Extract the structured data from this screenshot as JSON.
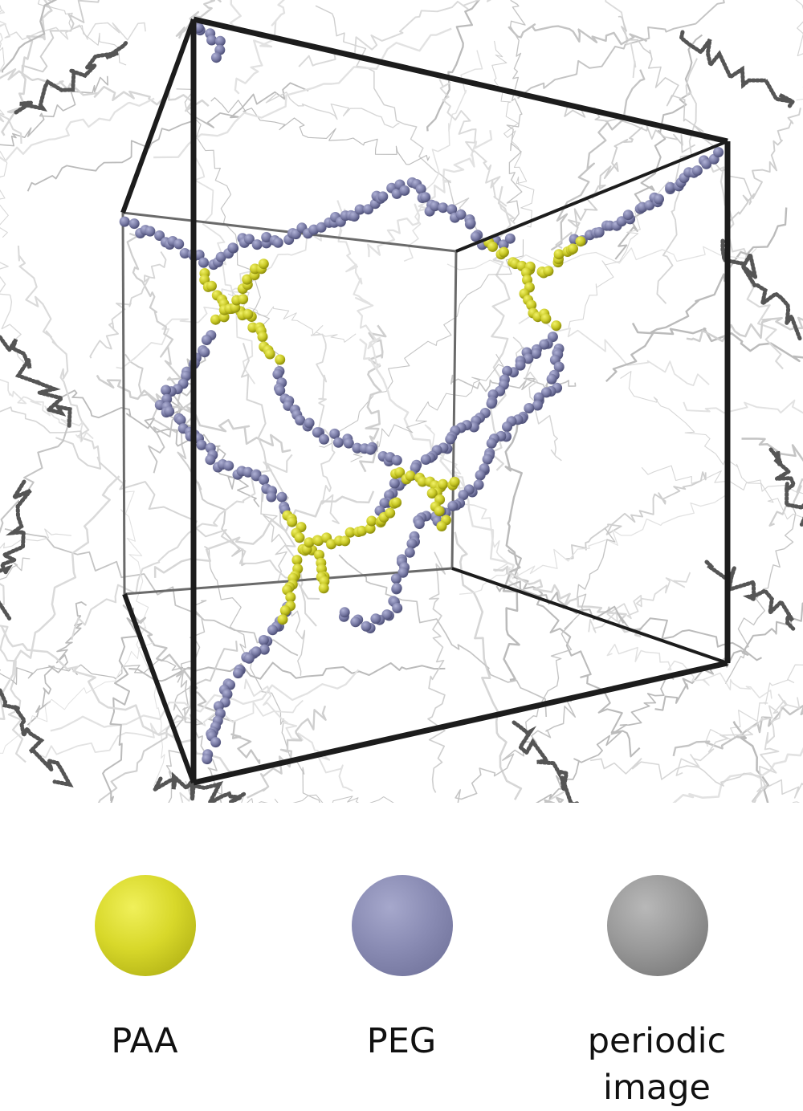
{
  "legend": {
    "items": [
      {
        "id": "paa",
        "lines": [
          "PAA"
        ],
        "color": "#d8d82a",
        "shade": "#9a9a0c"
      },
      {
        "id": "peg",
        "lines": [
          "PEG"
        ],
        "color": "#8a8cb4",
        "shade": "#5c5e88"
      },
      {
        "id": "periodic",
        "lines": [
          "periodic",
          "image"
        ],
        "color": "#9a9a9a",
        "shade": "#5a5a5a"
      }
    ]
  },
  "colors": {
    "paa": "#c8c826",
    "peg": "#74769e",
    "periodic_dark": "#4a4a4a",
    "periodic_light": "#bdbdbd",
    "box_edge": "#1c1c1c"
  }
}
